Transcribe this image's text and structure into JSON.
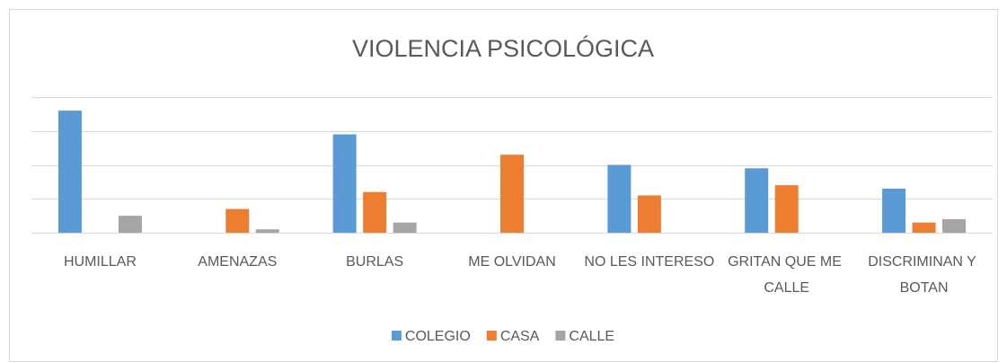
{
  "chart_data": {
    "type": "bar",
    "title": "VIOLENCIA PSICOLÓGICA",
    "categories": [
      "HUMILLAR",
      "AMENAZAS",
      "BURLAS",
      "ME OLVIDAN",
      "NO LES INTERESO",
      "GRITAN QUE ME CALLE",
      "DISCRIMINAN Y BOTAN"
    ],
    "series": [
      {
        "name": "COLEGIO",
        "color": "#5b9bd5",
        "values": [
          3.6,
          0,
          2.9,
          0,
          2.0,
          1.9,
          1.3
        ]
      },
      {
        "name": "CASA",
        "color": "#ed7d31",
        "values": [
          0,
          0.7,
          1.2,
          2.3,
          1.1,
          1.4,
          0.3
        ]
      },
      {
        "name": "CALLE",
        "color": "#a5a5a5",
        "values": [
          0.5,
          0.1,
          0.3,
          0,
          0,
          0,
          0.4
        ]
      }
    ],
    "ylim": [
      0,
      4
    ],
    "yticks": [
      0,
      1,
      2,
      3,
      4
    ],
    "grid": true
  }
}
